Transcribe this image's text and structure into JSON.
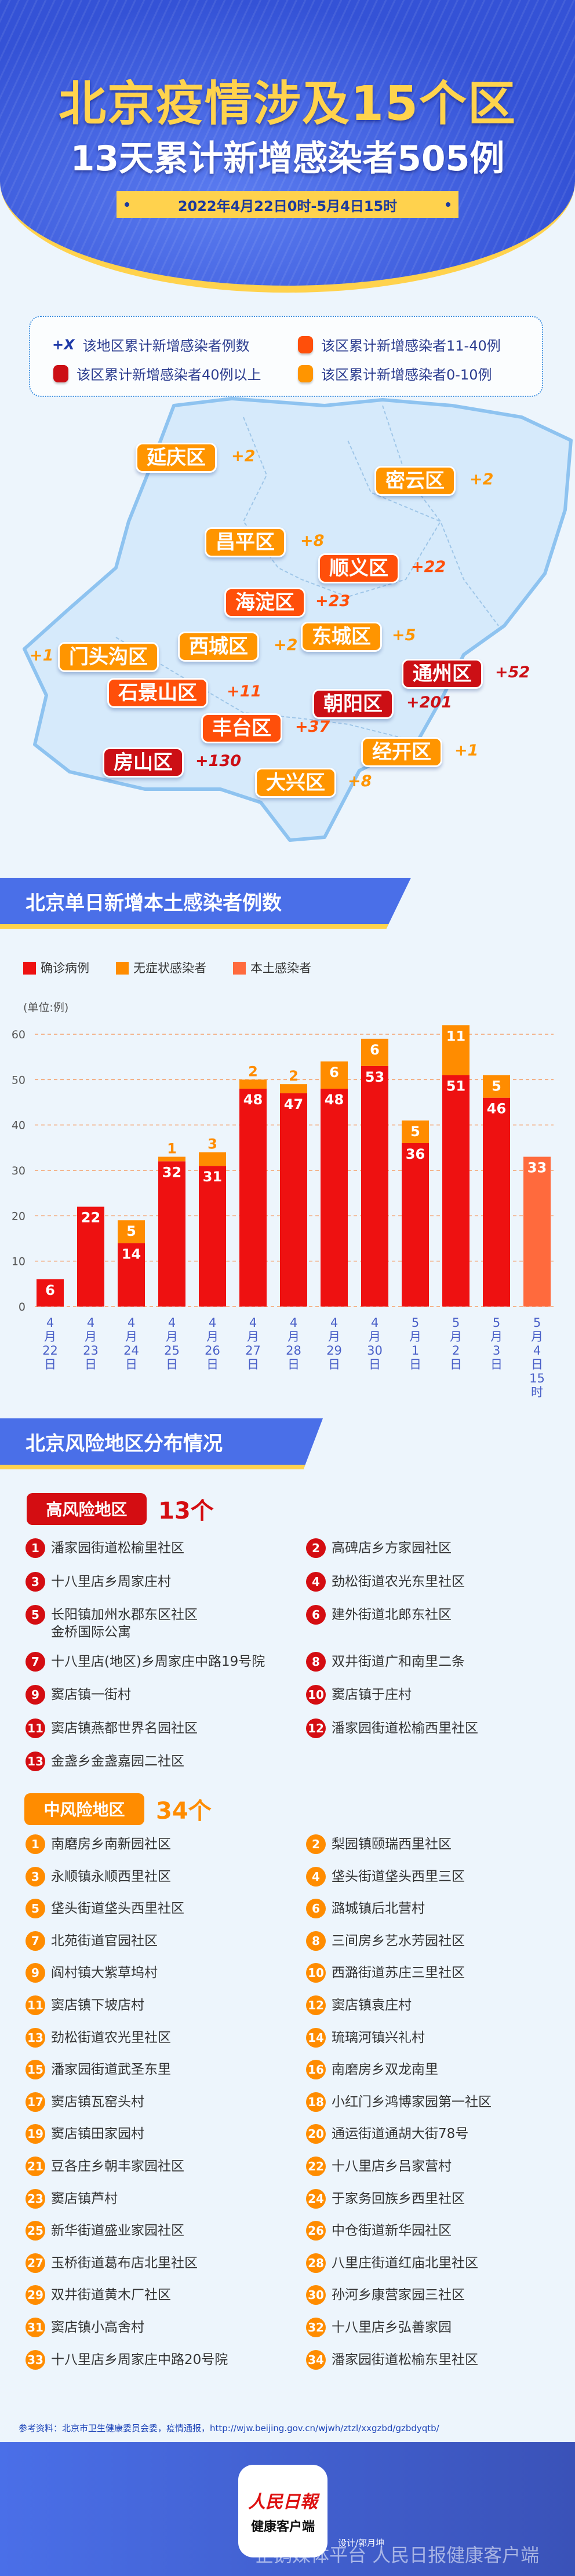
{
  "header": {
    "title": "北京疫情涉及15个区",
    "subtitle": "13天累计新增感染者505例",
    "date_range": "2022年4月22日0时-5月4日15时"
  },
  "map_legend": {
    "items": [
      {
        "marker": "+X",
        "label": "该地区累计新增感染者例数"
      },
      {
        "color": "#ff4f0a",
        "label": "该区累计新增感染者11-40例"
      },
      {
        "color": "#cc0f15",
        "label": "该区累计新增感染者40例以上"
      },
      {
        "color": "#ff9500",
        "label": "该区累计新增感染者0-10例"
      }
    ]
  },
  "colors": {
    "tier_high": "#cc0f15",
    "tier_mid": "#ff4f0a",
    "tier_low": "#ff9500",
    "confirmed": "#ee1111",
    "asymptomatic": "#ff8c00",
    "local": "#ff6a3d",
    "section_blue": "#4a6fe8",
    "accent_yellow": "#ffd24d"
  },
  "districts": [
    {
      "name": "延庆区",
      "count": "+2"
    },
    {
      "name": "密云区",
      "count": "+2"
    },
    {
      "name": "昌平区",
      "count": "+8"
    },
    {
      "name": "顺义区",
      "count": "+22"
    },
    {
      "name": "海淀区",
      "count": "+23"
    },
    {
      "name": "东城区",
      "count": "+5"
    },
    {
      "name": "西城区",
      "count": "+2"
    },
    {
      "name": "门头沟区",
      "count": "+1"
    },
    {
      "name": "通州区",
      "count": "+52"
    },
    {
      "name": "石景山区",
      "count": "+11"
    },
    {
      "name": "朝阳区",
      "count": "+201"
    },
    {
      "name": "丰台区",
      "count": "+37"
    },
    {
      "name": "经开区",
      "count": "+1"
    },
    {
      "name": "房山区",
      "count": "+130"
    },
    {
      "name": "大兴区",
      "count": "+8"
    }
  ],
  "chart_section": {
    "title": "北京单日新增本土感染者例数"
  },
  "chart_data": {
    "type": "bar",
    "stacked": true,
    "ylabel": "(单位:例)",
    "ylim": [
      0,
      60
    ],
    "yticks": [
      0,
      10,
      20,
      30,
      40,
      50,
      60
    ],
    "grid": true,
    "legend": "top-left",
    "categories": [
      "4月22日",
      "4月23日",
      "4月24日",
      "4月25日",
      "4月26日",
      "4月27日",
      "4月28日",
      "4月29日",
      "4月30日",
      "5月1日",
      "5月2日",
      "5月3日",
      "5月4日15时"
    ],
    "series": [
      {
        "name": "确诊病例",
        "values": [
          6,
          22,
          14,
          32,
          31,
          48,
          47,
          48,
          53,
          36,
          51,
          46,
          null
        ]
      },
      {
        "name": "无症状感染者",
        "values": [
          null,
          null,
          5,
          1,
          3,
          2,
          2,
          6,
          6,
          5,
          11,
          5,
          null
        ]
      },
      {
        "name": "本土感染者",
        "values": [
          null,
          null,
          null,
          null,
          null,
          null,
          null,
          null,
          null,
          null,
          null,
          null,
          33
        ]
      }
    ]
  },
  "risk_section": {
    "title": "北京风险地区分布情况"
  },
  "high_risk": {
    "label": "高风险地区",
    "count": "13个",
    "items": [
      "潘家园街道松榆里社区",
      "高碑店乡方家园社区",
      "十八里店乡周家庄村",
      "劲松街道农光东里社区",
      "长阳镇加州水郡东区社区\n金桥国际公寓",
      "建外街道北郎东社区",
      "十八里店(地区)乡周家庄中路19号院",
      "双井街道广和南里二条",
      "窦店镇一街村",
      "窦店镇于庄村",
      "窦店镇燕都世界名园社区",
      "潘家园街道松榆西里社区",
      "金盏乡金盏嘉园二社区"
    ]
  },
  "mid_risk": {
    "label": "中风险地区",
    "count": "34个",
    "items": [
      "南磨房乡南新园社区",
      "梨园镇颐瑞西里社区",
      "永顺镇永顺西里社区",
      "垡头街道垡头西里三区",
      "垡头街道垡头西里社区",
      "潞城镇后北营村",
      "北苑街道官园社区",
      "三间房乡艺水芳园社区",
      "阎村镇大紫草坞村",
      "西潞街道苏庄三里社区",
      "窦店镇下坡店村",
      "窦店镇袁庄村",
      "劲松街道农光里社区",
      "琉璃河镇兴礼村",
      "潘家园街道武圣东里",
      "南磨房乡双龙南里",
      "窦店镇瓦窑头村",
      "小红门乡鸿博家园第一社区",
      "窦店镇田家园村",
      "通运街道通胡大街78号",
      "豆各庄乡朝丰家园社区",
      "十八里店乡吕家营村",
      "窦店镇芦村",
      "于家务回族乡西里社区",
      "新华街道盛业家园社区",
      "中仓街道新华园社区",
      "玉桥街道葛布店北里社区",
      "八里庄街道红庙北里社区",
      "双井街道黄木厂社区",
      "孙河乡康营家园三社区",
      "窦店镇小高舍村",
      "十八里店乡弘善家园",
      "十八里店乡周家庄中路20号院",
      "潘家园街道松榆东里社区"
    ]
  },
  "source": "参考资料：北京市卫生健康委员会委，疫情通报，http://wjw.beijing.gov.cn/wjwh/ztzl/xxgzbd/gzbdyqtb/",
  "footer": {
    "logo_text": "人民日報",
    "logo_sub": "健康客户端",
    "designer": "设计/郭月坤",
    "watermark": "企鹅媒体平台 人民日报健康客户端"
  }
}
